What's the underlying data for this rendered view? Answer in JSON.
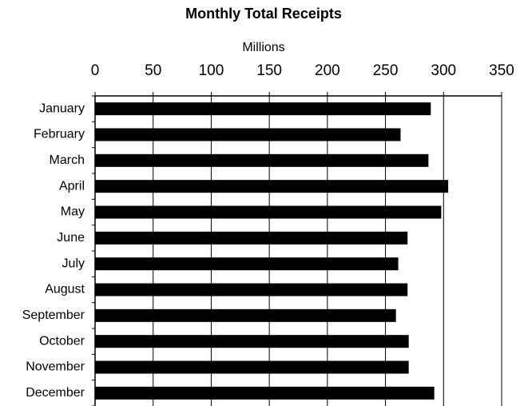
{
  "chart_data": {
    "type": "barh",
    "title": "Monthly Total Receipts",
    "x_label": "Millions",
    "categories": [
      "January",
      "February",
      "March",
      "April",
      "May",
      "June",
      "July",
      "August",
      "September",
      "October",
      "November",
      "December"
    ],
    "values": [
      289,
      263,
      287,
      304,
      298,
      269,
      261,
      269,
      259,
      270,
      270,
      292
    ],
    "color": "#000000",
    "xlim": [
      0,
      350
    ],
    "xticks": [
      0,
      50,
      100,
      150,
      200,
      250,
      300,
      350
    ],
    "grid": true
  }
}
